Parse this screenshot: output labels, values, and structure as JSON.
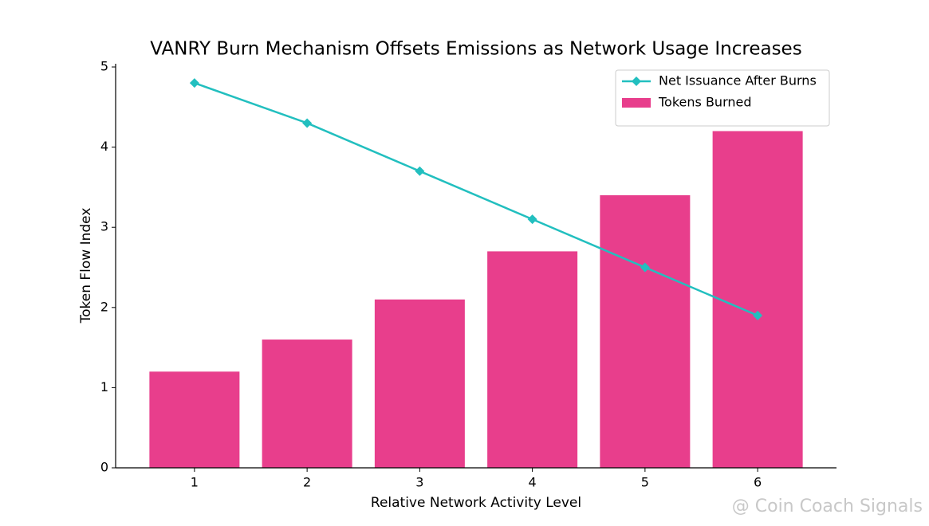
{
  "chart_data": {
    "type": "bar",
    "title": "VANRY Burn Mechanism Offsets Emissions as Network Usage Increases",
    "x_label": "Relative Network Activity Level",
    "y_label": "Token Flow Index",
    "x": [
      1,
      2,
      3,
      4,
      5,
      6
    ],
    "series": [
      {
        "name": "Net Issuance After Burns",
        "type": "line",
        "marker": "diamond",
        "color": "#22bfbf",
        "values": [
          4.8,
          4.3,
          3.7,
          3.1,
          2.5,
          1.9
        ]
      },
      {
        "name": "Tokens Burned",
        "type": "bar",
        "color": "#e83e8c",
        "values": [
          1.2,
          1.6,
          2.1,
          2.7,
          3.4,
          4.2
        ]
      }
    ],
    "bar_width": 0.8,
    "xlim": [
      0.3,
      6.7
    ],
    "xticks": [
      1,
      2,
      3,
      4,
      5,
      6
    ],
    "ylim": [
      0,
      5.04
    ],
    "yticks": [
      0,
      1,
      2,
      3,
      4,
      5
    ],
    "grid": false,
    "legend": "upper right",
    "watermark": "@ Coin Coach Signals"
  }
}
